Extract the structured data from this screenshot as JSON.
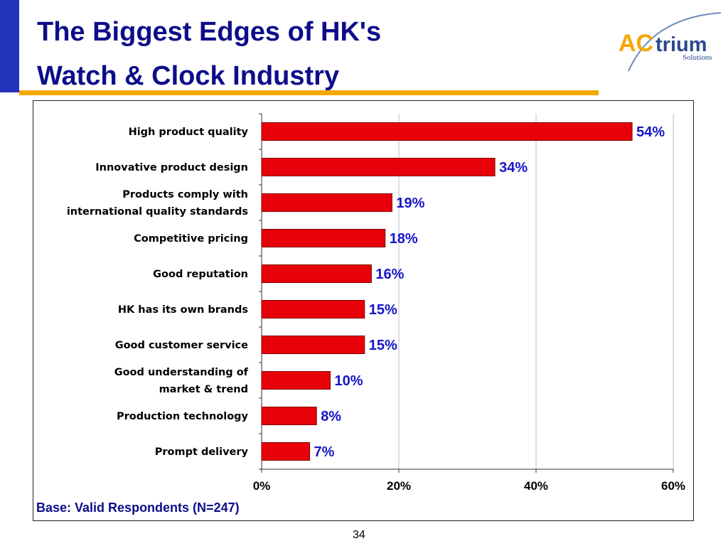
{
  "slide": {
    "title_line1": "The Biggest Edges of HK's",
    "title_line2": "Watch & Clock Industry",
    "base_note": "Base: Valid Respondents (N=247)",
    "page_number": "34"
  },
  "logo": {
    "brand_text_ac": "AC",
    "brand_text_trium": "trium",
    "tagline": "Solutions"
  },
  "colors": {
    "title": "#0d0d8a",
    "title_rule": "#f5a800",
    "left_bar": "#2233bb",
    "bar_fill": "#e8000b",
    "bar_stroke": "#800000",
    "value_label": "#1515c8",
    "logo_ac": "#f5a800",
    "logo_trium": "#2b4a8c"
  },
  "chart_data": {
    "type": "bar",
    "orientation": "horizontal",
    "categories": [
      [
        "High product quality"
      ],
      [
        "Innovative product design"
      ],
      [
        "Products comply with",
        "international quality standards"
      ],
      [
        "Competitive pricing"
      ],
      [
        "Good reputation"
      ],
      [
        "HK has its own brands"
      ],
      [
        "Good customer service"
      ],
      [
        "Good understanding of",
        "market & trend"
      ],
      [
        "Production technology"
      ],
      [
        "Prompt delivery"
      ]
    ],
    "values": [
      54,
      34,
      19,
      18,
      16,
      15,
      15,
      10,
      8,
      7
    ],
    "value_labels": [
      "54%",
      "34%",
      "19%",
      "18%",
      "16%",
      "15%",
      "15%",
      "10%",
      "8%",
      "7%"
    ],
    "xlim": [
      0,
      60
    ],
    "x_ticks": [
      0,
      20,
      40,
      60
    ],
    "x_tick_labels": [
      "0%",
      "20%",
      "40%",
      "60%"
    ],
    "grid": true,
    "legend": false
  }
}
